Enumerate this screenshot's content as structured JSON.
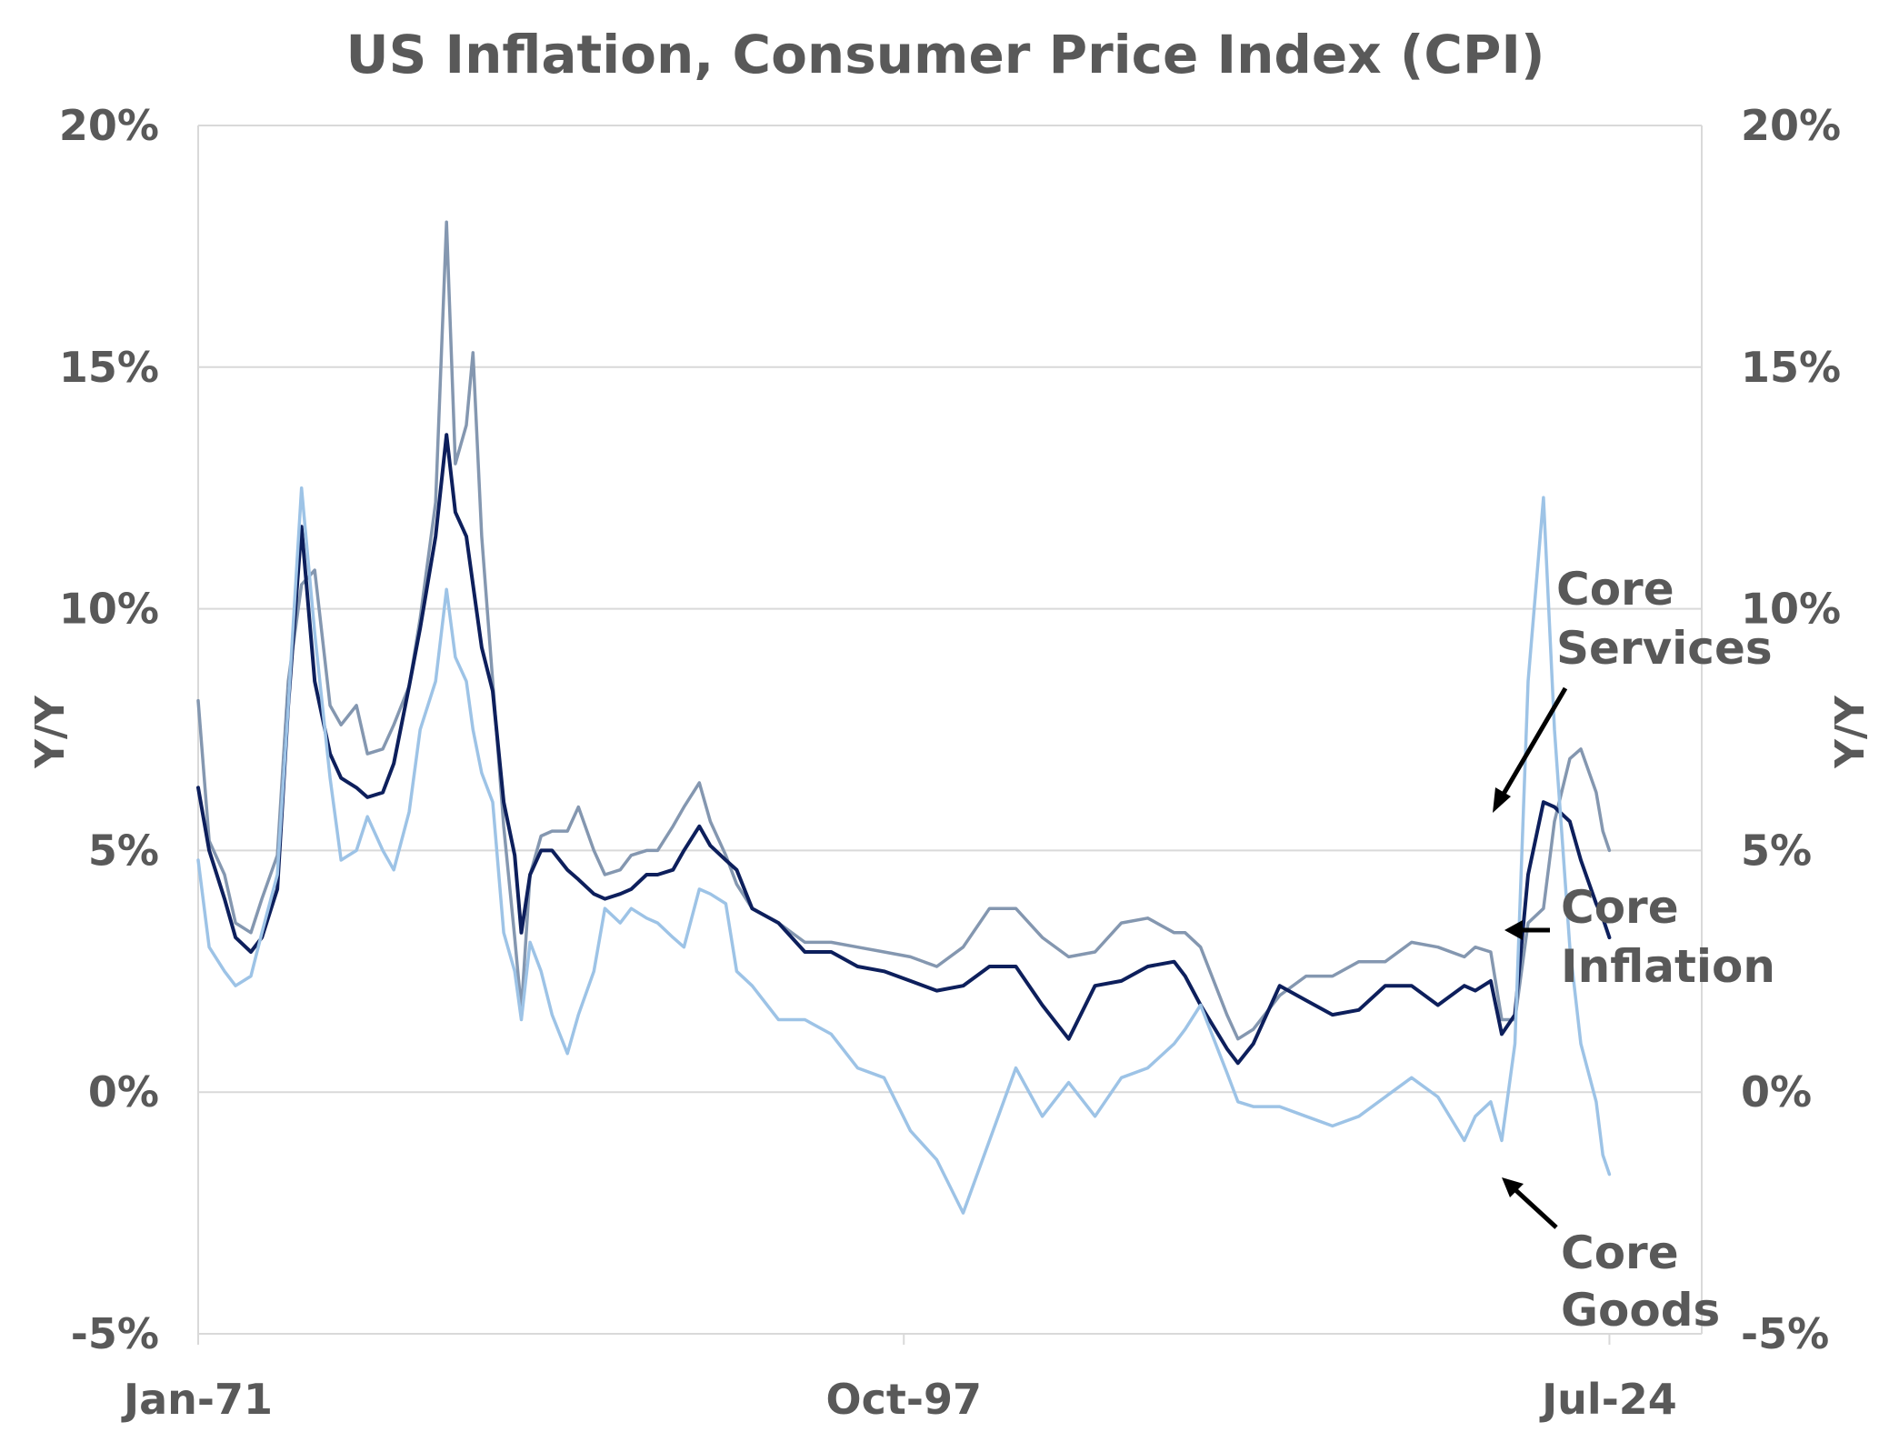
{
  "chart_data": {
    "type": "line",
    "title": "US Inflation, Consumer Price Index (CPI)",
    "ylabel": "Y/Y",
    "y2label": "Y/Y",
    "ylim": [
      -5,
      20
    ],
    "y2lim": [
      -5,
      20
    ],
    "yticks": [
      -5,
      0,
      5,
      10,
      15,
      20
    ],
    "ytick_labels": [
      "-5%",
      "0%",
      "5%",
      "10%",
      "15%",
      "20%"
    ],
    "xlim": [
      "1971-01",
      "2028-01"
    ],
    "xticks": [
      {
        "date": "1971-01",
        "label": "Jan-71"
      },
      {
        "date": "1997-10",
        "label": "Oct-97"
      },
      {
        "date": "2024-07",
        "label": "Jul-24"
      }
    ],
    "grid": true,
    "legend": "none",
    "series": [
      {
        "name": "Core Services",
        "color": "#8497b0",
        "x": [
          "1971-01",
          "1971-06",
          "1972-01",
          "1972-06",
          "1973-01",
          "1973-06",
          "1974-01",
          "1974-06",
          "1974-12",
          "1975-06",
          "1976-01",
          "1976-06",
          "1977-01",
          "1977-06",
          "1978-01",
          "1978-06",
          "1979-01",
          "1979-06",
          "1980-01",
          "1980-06",
          "1980-10",
          "1981-03",
          "1981-06",
          "1981-10",
          "1982-03",
          "1982-08",
          "1983-01",
          "1983-04",
          "1983-08",
          "1984-01",
          "1984-06",
          "1985-01",
          "1985-06",
          "1986-01",
          "1986-06",
          "1987-01",
          "1987-06",
          "1988-01",
          "1988-06",
          "1989-01",
          "1989-06",
          "1990-01",
          "1990-06",
          "1991-01",
          "1991-06",
          "1992-01",
          "1993-01",
          "1994-01",
          "1995-01",
          "1996-01",
          "1997-01",
          "1998-01",
          "1999-01",
          "2000-01",
          "2001-01",
          "2002-01",
          "2003-01",
          "2004-01",
          "2005-01",
          "2006-01",
          "2007-01",
          "2008-01",
          "2008-06",
          "2009-01",
          "2010-01",
          "2010-06",
          "2011-01",
          "2012-01",
          "2013-01",
          "2014-01",
          "2015-01",
          "2016-01",
          "2017-01",
          "2018-01",
          "2019-01",
          "2019-06",
          "2020-01",
          "2020-06",
          "2020-12",
          "2021-06",
          "2022-01",
          "2022-06",
          "2023-01",
          "2023-06",
          "2024-01",
          "2024-04",
          "2024-07"
        ],
        "values": [
          8.1,
          5.2,
          4.5,
          3.5,
          3.3,
          4.0,
          4.9,
          8.5,
          10.5,
          10.8,
          8.0,
          7.6,
          8.0,
          7.0,
          7.1,
          7.6,
          8.4,
          9.8,
          12.2,
          18.0,
          13.0,
          13.8,
          15.3,
          11.5,
          8.5,
          5.5,
          3.2,
          1.7,
          4.5,
          5.3,
          5.4,
          5.4,
          5.9,
          5.0,
          4.5,
          4.6,
          4.9,
          5.0,
          5.0,
          5.5,
          5.9,
          6.4,
          5.6,
          4.9,
          4.3,
          3.8,
          3.5,
          3.1,
          3.1,
          3.0,
          2.9,
          2.8,
          2.6,
          3.0,
          3.8,
          3.8,
          3.2,
          2.8,
          2.9,
          3.5,
          3.6,
          3.3,
          3.3,
          3.0,
          1.6,
          1.1,
          1.3,
          2.0,
          2.4,
          2.4,
          2.7,
          2.7,
          3.1,
          3.0,
          2.8,
          3.0,
          2.9,
          1.5,
          1.5,
          3.5,
          3.8,
          5.6,
          6.9,
          7.1,
          6.2,
          5.4,
          5.0
        ]
      },
      {
        "name": "Core Inflation",
        "color": "#0d1f5c",
        "x": [
          "1971-01",
          "1971-06",
          "1972-01",
          "1972-06",
          "1973-01",
          "1973-06",
          "1974-01",
          "1974-06",
          "1974-12",
          "1975-06",
          "1976-01",
          "1976-06",
          "1977-01",
          "1977-06",
          "1978-01",
          "1978-06",
          "1979-01",
          "1979-06",
          "1980-01",
          "1980-06",
          "1980-10",
          "1981-03",
          "1981-06",
          "1981-10",
          "1982-03",
          "1982-08",
          "1983-01",
          "1983-04",
          "1983-08",
          "1984-01",
          "1984-06",
          "1985-01",
          "1985-06",
          "1986-01",
          "1986-06",
          "1987-01",
          "1987-06",
          "1988-01",
          "1988-06",
          "1989-01",
          "1989-06",
          "1990-01",
          "1990-06",
          "1991-01",
          "1991-06",
          "1992-01",
          "1993-01",
          "1994-01",
          "1995-01",
          "1996-01",
          "1997-01",
          "1998-01",
          "1999-01",
          "2000-01",
          "2001-01",
          "2002-01",
          "2003-01",
          "2004-01",
          "2005-01",
          "2006-01",
          "2007-01",
          "2008-01",
          "2008-06",
          "2009-01",
          "2010-01",
          "2010-06",
          "2011-01",
          "2012-01",
          "2013-01",
          "2014-01",
          "2015-01",
          "2016-01",
          "2017-01",
          "2018-01",
          "2019-01",
          "2019-06",
          "2020-01",
          "2020-06",
          "2020-12",
          "2021-06",
          "2022-01",
          "2022-06",
          "2023-01",
          "2023-06",
          "2024-01",
          "2024-04",
          "2024-07"
        ],
        "values": [
          6.3,
          5.0,
          4.0,
          3.2,
          2.9,
          3.2,
          4.2,
          8.0,
          11.7,
          8.5,
          7.0,
          6.5,
          6.3,
          6.1,
          6.2,
          6.8,
          8.4,
          9.6,
          11.5,
          13.6,
          12.0,
          11.5,
          10.5,
          9.2,
          8.3,
          6.0,
          4.9,
          3.3,
          4.5,
          5.0,
          5.0,
          4.6,
          4.4,
          4.1,
          4.0,
          4.1,
          4.2,
          4.5,
          4.5,
          4.6,
          5.0,
          5.5,
          5.1,
          4.8,
          4.6,
          3.8,
          3.5,
          2.9,
          2.9,
          2.6,
          2.5,
          2.3,
          2.1,
          2.2,
          2.6,
          2.6,
          1.8,
          1.1,
          2.2,
          2.3,
          2.6,
          2.7,
          2.4,
          1.8,
          0.9,
          0.6,
          1.0,
          2.2,
          1.9,
          1.6,
          1.7,
          2.2,
          2.2,
          1.8,
          2.2,
          2.1,
          2.3,
          1.2,
          1.6,
          4.5,
          6.0,
          5.9,
          5.6,
          4.8,
          3.9,
          3.6,
          3.2
        ]
      },
      {
        "name": "Core Goods",
        "color": "#9dc3e6",
        "x": [
          "1971-01",
          "1971-06",
          "1972-01",
          "1972-06",
          "1973-01",
          "1973-06",
          "1974-01",
          "1974-06",
          "1974-12",
          "1975-06",
          "1976-01",
          "1976-06",
          "1977-01",
          "1977-06",
          "1978-01",
          "1978-06",
          "1979-01",
          "1979-06",
          "1980-01",
          "1980-06",
          "1980-10",
          "1981-03",
          "1981-06",
          "1981-10",
          "1982-03",
          "1982-08",
          "1983-01",
          "1983-04",
          "1983-08",
          "1984-01",
          "1984-06",
          "1985-01",
          "1985-06",
          "1986-01",
          "1986-06",
          "1987-01",
          "1987-06",
          "1988-01",
          "1988-06",
          "1989-01",
          "1989-06",
          "1990-01",
          "1990-06",
          "1991-01",
          "1991-06",
          "1992-01",
          "1993-01",
          "1994-01",
          "1995-01",
          "1996-01",
          "1997-01",
          "1998-01",
          "1999-01",
          "2000-01",
          "2001-01",
          "2002-01",
          "2003-01",
          "2004-01",
          "2005-01",
          "2006-01",
          "2007-01",
          "2008-01",
          "2008-06",
          "2009-01",
          "2010-01",
          "2010-06",
          "2011-01",
          "2012-01",
          "2013-01",
          "2014-01",
          "2015-01",
          "2016-01",
          "2017-01",
          "2018-01",
          "2019-01",
          "2019-06",
          "2020-01",
          "2020-06",
          "2020-12",
          "2021-06",
          "2022-01",
          "2022-06",
          "2023-01",
          "2023-06",
          "2024-01",
          "2024-04",
          "2024-07"
        ],
        "values": [
          4.8,
          3.0,
          2.5,
          2.2,
          2.4,
          3.3,
          4.5,
          8.0,
          12.5,
          9.5,
          6.5,
          4.8,
          5.0,
          5.7,
          5.0,
          4.6,
          5.8,
          7.5,
          8.5,
          10.4,
          9.0,
          8.5,
          7.5,
          6.6,
          6.0,
          3.3,
          2.5,
          1.5,
          3.1,
          2.5,
          1.6,
          0.8,
          1.6,
          2.5,
          3.8,
          3.5,
          3.8,
          3.6,
          3.5,
          3.2,
          3.0,
          4.2,
          4.1,
          3.9,
          2.5,
          2.2,
          1.5,
          1.5,
          1.2,
          0.5,
          0.3,
          -0.8,
          -1.4,
          -2.5,
          -1.0,
          0.5,
          -0.5,
          0.2,
          -0.5,
          0.3,
          0.5,
          1.0,
          1.3,
          1.8,
          0.4,
          -0.2,
          -0.3,
          -0.3,
          -0.5,
          -0.7,
          -0.5,
          -0.1,
          0.3,
          -0.1,
          -1.0,
          -0.5,
          -0.2,
          -1.0,
          1.0,
          8.5,
          12.3,
          7.5,
          3.0,
          1.0,
          -0.2,
          -1.3,
          -1.7
        ]
      }
    ],
    "annotations": [
      {
        "lines": [
          "Core",
          "Services"
        ],
        "target": "Core Services"
      },
      {
        "lines": [
          "Core",
          "Inflation"
        ],
        "target": "Core Inflation"
      },
      {
        "lines": [
          "Core",
          "Goods"
        ],
        "target": "Core Goods"
      }
    ]
  }
}
